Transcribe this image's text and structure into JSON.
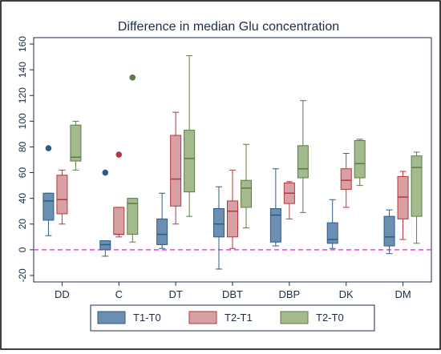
{
  "chart_data": {
    "type": "box",
    "title": "Difference in median Glu concentration",
    "xlabel": "",
    "ylabel": "",
    "ylim": [
      -25,
      165
    ],
    "yticks": [
      -20,
      0,
      20,
      40,
      60,
      80,
      100,
      120,
      140,
      160
    ],
    "reference_line": {
      "y": 0,
      "color": "#ff33ff",
      "style": "dashed"
    },
    "grid": false,
    "legend_position": "bottom",
    "categories": [
      "DD",
      "C",
      "DT",
      "DBT",
      "DBP",
      "DK",
      "DM"
    ],
    "series": [
      {
        "name": "T1-T0",
        "color": "#6b8fb3",
        "stroke": "#2f5b85",
        "boxes": [
          {
            "category": "DD",
            "whisker_low": 11,
            "q1": 23,
            "median": 38,
            "q3": 44,
            "whisker_high": 44,
            "outliers": [
              79
            ]
          },
          {
            "category": "C",
            "whisker_low": -5,
            "q1": 0,
            "median": 4,
            "q3": 7,
            "whisker_high": 7,
            "outliers": [
              60
            ]
          },
          {
            "category": "DT",
            "whisker_low": 1,
            "q1": 4,
            "median": 12,
            "q3": 24,
            "whisker_high": 44,
            "outliers": []
          },
          {
            "category": "DBT",
            "whisker_low": -15,
            "q1": 10,
            "median": 20,
            "q3": 32,
            "whisker_high": 49,
            "outliers": []
          },
          {
            "category": "DBP",
            "whisker_low": 3,
            "q1": 6,
            "median": 27,
            "q3": 32,
            "whisker_high": 63,
            "outliers": []
          },
          {
            "category": "DK",
            "whisker_low": 1,
            "q1": 5,
            "median": 8,
            "q3": 21,
            "whisker_high": 39,
            "outliers": []
          },
          {
            "category": "DM",
            "whisker_low": -3,
            "q1": 3,
            "median": 10,
            "q3": 26,
            "whisker_high": 31,
            "outliers": []
          }
        ]
      },
      {
        "name": "T2-T1",
        "color": "#d9a0a3",
        "stroke": "#b2383f",
        "boxes": [
          {
            "category": "DD",
            "whisker_low": 20,
            "q1": 28,
            "median": 39,
            "q3": 58,
            "whisker_high": 62,
            "outliers": []
          },
          {
            "category": "C",
            "whisker_low": 10,
            "q1": 12,
            "median": 12,
            "q3": 33,
            "whisker_high": 33,
            "outliers": [
              74
            ]
          },
          {
            "category": "DT",
            "whisker_low": 20,
            "q1": 34,
            "median": 55,
            "q3": 89,
            "whisker_high": 107,
            "outliers": []
          },
          {
            "category": "DBT",
            "whisker_low": 1,
            "q1": 10,
            "median": 30,
            "q3": 38,
            "whisker_high": 62,
            "outliers": []
          },
          {
            "category": "DBP",
            "whisker_low": 24,
            "q1": 36,
            "median": 44,
            "q3": 52,
            "whisker_high": 53,
            "outliers": []
          },
          {
            "category": "DK",
            "whisker_low": 33,
            "q1": 47,
            "median": 54,
            "q3": 63,
            "whisker_high": 75,
            "outliers": []
          },
          {
            "category": "DM",
            "whisker_low": 8,
            "q1": 24,
            "median": 41,
            "q3": 57,
            "whisker_high": 61,
            "outliers": []
          }
        ]
      },
      {
        "name": "T2-T0",
        "color": "#a3bb8c",
        "stroke": "#5f7a46",
        "boxes": [
          {
            "category": "DD",
            "whisker_low": 62,
            "q1": 69,
            "median": 72,
            "q3": 97,
            "whisker_high": 100,
            "outliers": []
          },
          {
            "category": "C",
            "whisker_low": 6,
            "q1": 12,
            "median": 36,
            "q3": 40,
            "whisker_high": 40,
            "outliers": [
              134
            ]
          },
          {
            "category": "DT",
            "whisker_low": 26,
            "q1": 45,
            "median": 71,
            "q3": 93,
            "whisker_high": 151,
            "outliers": []
          },
          {
            "category": "DBT",
            "whisker_low": 17,
            "q1": 33,
            "median": 48,
            "q3": 54,
            "whisker_high": 82,
            "outliers": []
          },
          {
            "category": "DBP",
            "whisker_low": 29,
            "q1": 56,
            "median": 63,
            "q3": 81,
            "whisker_high": 116,
            "outliers": []
          },
          {
            "category": "DK",
            "whisker_low": 50,
            "q1": 56,
            "median": 67,
            "q3": 85,
            "whisker_high": 86,
            "outliers": []
          },
          {
            "category": "DM",
            "whisker_low": 5,
            "q1": 26,
            "median": 64,
            "q3": 73,
            "whisker_high": 76,
            "outliers": []
          }
        ]
      }
    ]
  }
}
